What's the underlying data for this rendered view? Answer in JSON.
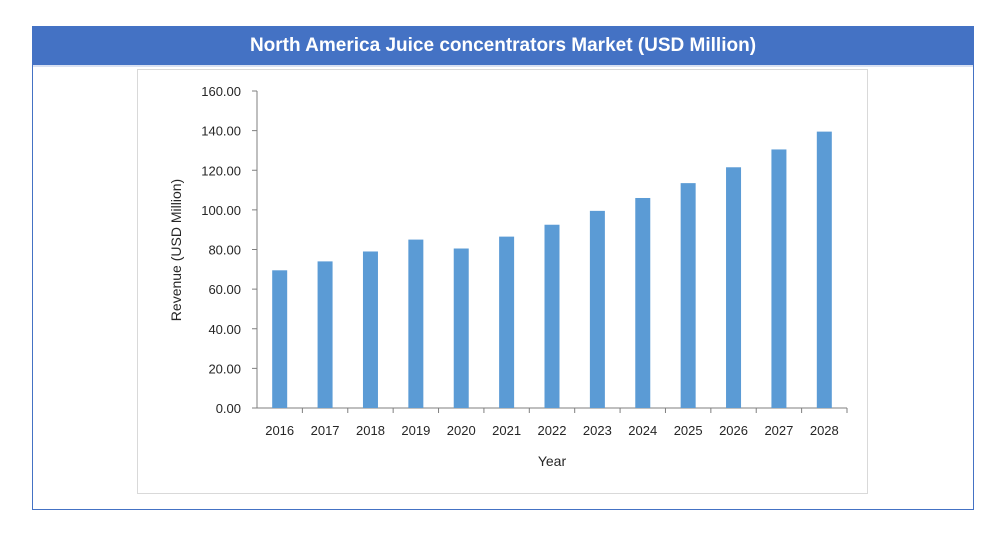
{
  "chart_data": {
    "type": "bar",
    "title": "North America Juice concentrators Market (USD Million)",
    "xlabel": "Year",
    "ylabel": "Revenue (USD Million)",
    "categories": [
      "2016",
      "2017",
      "2018",
      "2019",
      "2020",
      "2021",
      "2022",
      "2023",
      "2024",
      "2025",
      "2026",
      "2027",
      "2028"
    ],
    "values": [
      69.5,
      74.0,
      79.0,
      85.0,
      80.5,
      86.5,
      92.5,
      99.5,
      106.0,
      113.5,
      121.5,
      130.5,
      139.5
    ],
    "ylim": [
      0,
      160
    ],
    "yticks": [
      "0.00",
      "20.00",
      "40.00",
      "60.00",
      "80.00",
      "100.00",
      "120.00",
      "140.00",
      "160.00"
    ],
    "bar_color": "#5b9bd5",
    "header_color": "#4472c4",
    "grid": false,
    "legend": "none"
  }
}
